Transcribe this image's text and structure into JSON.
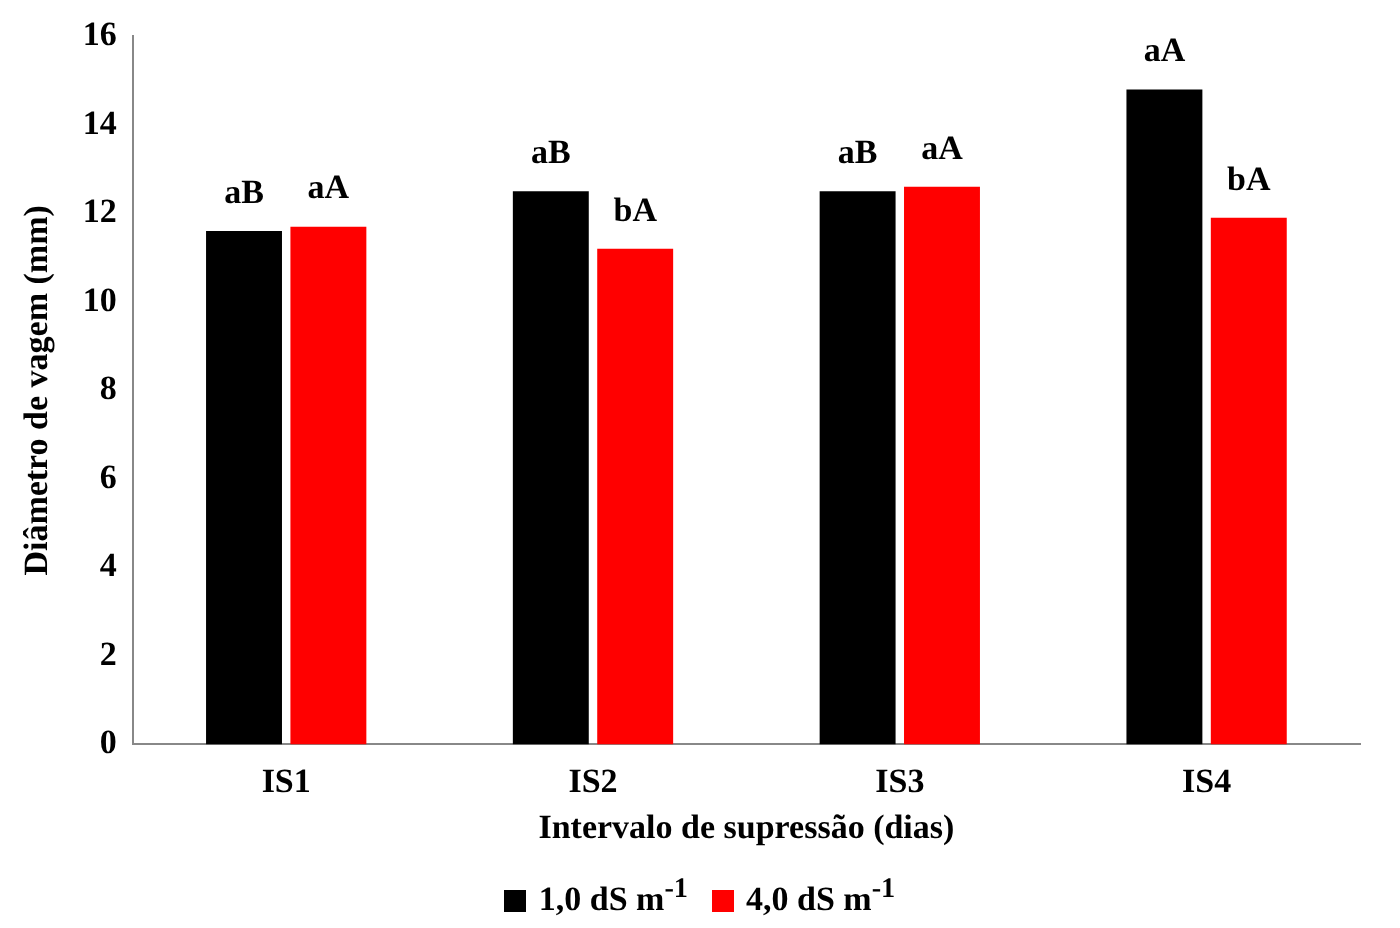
{
  "chart_data": {
    "type": "bar",
    "xlabel": "Intervalo de supressão (dias)",
    "ylabel": "Diâmetro de vagem (mm)",
    "categories": [
      "IS1",
      "IS2",
      "IS3",
      "IS4"
    ],
    "series": [
      {
        "name": "1,0 dS m$^{-1}$",
        "color": "#000000",
        "values": [
          11.6,
          12.5,
          12.5,
          14.8
        ],
        "value_labels": [
          "aB",
          "aB",
          "aB",
          "aA"
        ]
      },
      {
        "name": "4,0 dS m$^{-1}$",
        "color": "#ff0000",
        "values": [
          11.7,
          11.2,
          12.6,
          11.9
        ],
        "value_labels": [
          "aA",
          "bA",
          "aA",
          "bA"
        ]
      }
    ],
    "ylim": [
      0,
      16
    ],
    "yticks": [
      0,
      2,
      4,
      6,
      8,
      10,
      12,
      14,
      16
    ],
    "grid": false,
    "legend": "bottom"
  }
}
